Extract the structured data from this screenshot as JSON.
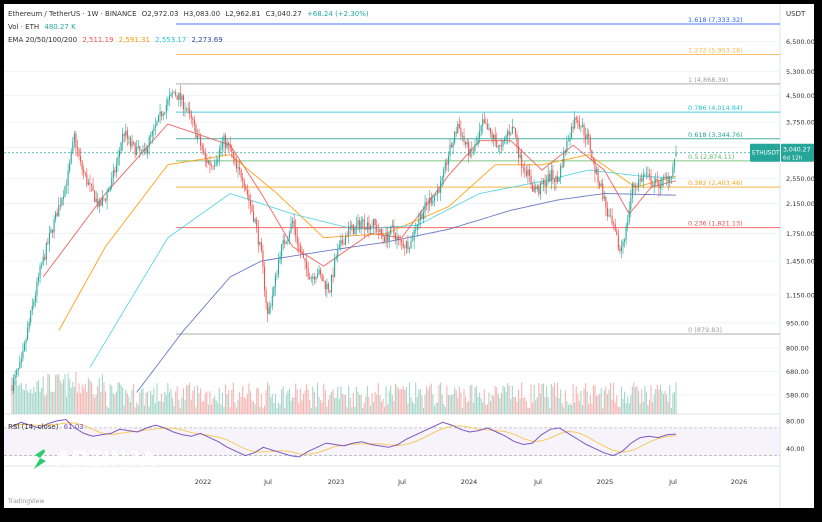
{
  "header": {
    "symbol_line": "Ethereum / TetherUS · 1W · BINANCE",
    "ohlc": {
      "o": "O2,972.03",
      "h": "H3,083.00",
      "l": "L2,962.81",
      "c": "C3,040.27",
      "chg": "+68.24 (+2.30%)"
    },
    "vol_label": "Vol · ETH",
    "vol_value": "480.27 K",
    "ema_label": "EMA 20/50/100/200",
    "ema_values": [
      "2,511.19",
      "2,591.31",
      "2,553.17",
      "2,273.69"
    ],
    "rsi_label": "RSI (14, close)",
    "rsi_value": "61.03",
    "currency": "USDT",
    "branding": "TradingView"
  },
  "watermark": {
    "brand": "ARZINJA",
    "site": "arzinja.info"
  },
  "colors": {
    "up": "#26a69a",
    "down": "#ef5350",
    "ema20": "#ef5350",
    "ema50": "#ff9800",
    "ema100": "#4dd0e1",
    "ema200": "#5c6bc0",
    "rsi": "#7e57c2",
    "rsi_ma": "#f9c74f",
    "brand": "#2ecc71"
  },
  "chart_data": {
    "type": "candlestick",
    "symbol": "ETHUSDT",
    "price_scale": "log",
    "y_ticks": [
      6500,
      5300,
      4500,
      3750,
      3150,
      2550,
      2150,
      1750,
      1450,
      1150,
      950,
      800,
      680,
      580
    ],
    "x_ticks": [
      "2022",
      "Jul",
      "2023",
      "Jul",
      "2024",
      "Jul",
      "2025",
      "Jul",
      "2026"
    ],
    "last_price": {
      "label": "ETHUSDT",
      "value": "3,040.27",
      "countdown": "6d 12h"
    },
    "fib_levels": [
      {
        "ratio": "1.618",
        "price": 7333.32,
        "label": "1.618 (7,333.32)",
        "color": "#2962ff"
      },
      {
        "ratio": "1.272",
        "price": 5953.28,
        "label": "1.272 (5,953.28)",
        "color": "#ffb74d"
      },
      {
        "ratio": "1",
        "price": 4868.39,
        "label": "1 (4,868.39)",
        "color": "#9e9e9e"
      },
      {
        "ratio": "0.786",
        "price": 4014.84,
        "label": "0.786 (4,014.84)",
        "color": "#26c6da"
      },
      {
        "ratio": "0.618",
        "price": 3344.76,
        "label": "0.618 (3,344.76)",
        "color": "#26a69a"
      },
      {
        "ratio": "0.5",
        "price": 2874.11,
        "label": "0.5 (2,874.11)",
        "color": "#66bb6a"
      },
      {
        "ratio": "0.382",
        "price": 2403.46,
        "label": "0.382 (2,403.46)",
        "color": "#f5a623"
      },
      {
        "ratio": "0.236",
        "price": 1821.13,
        "label": "0.236 (1,821.13)",
        "color": "#ef5350"
      },
      {
        "ratio": "0",
        "price": 879.83,
        "label": "0 (879.83)",
        "color": "#9e9e9e"
      }
    ],
    "close_path": [
      [
        0,
        620
      ],
      [
        6,
        720
      ],
      [
        12,
        1000
      ],
      [
        18,
        1350
      ],
      [
        24,
        1700
      ],
      [
        30,
        2100
      ],
      [
        36,
        2600
      ],
      [
        40,
        3400
      ],
      [
        44,
        2800
      ],
      [
        48,
        2500
      ],
      [
        52,
        2300
      ],
      [
        56,
        2100
      ],
      [
        60,
        2250
      ],
      [
        64,
        2500
      ],
      [
        68,
        2900
      ],
      [
        70,
        3300
      ],
      [
        72,
        3500
      ],
      [
        76,
        3200
      ],
      [
        80,
        3100
      ],
      [
        84,
        3000
      ],
      [
        88,
        3300
      ],
      [
        92,
        3600
      ],
      [
        96,
        4000
      ],
      [
        100,
        4300
      ],
      [
        104,
        4600
      ],
      [
        108,
        4400
      ],
      [
        112,
        4100
      ],
      [
        116,
        3700
      ],
      [
        120,
        3300
      ],
      [
        124,
        2900
      ],
      [
        128,
        2800
      ],
      [
        132,
        3000
      ],
      [
        136,
        3300
      ],
      [
        140,
        3100
      ],
      [
        144,
        2700
      ],
      [
        148,
        2600
      ],
      [
        152,
        2200
      ],
      [
        156,
        1900
      ],
      [
        160,
        1500
      ],
      [
        164,
        1000
      ],
      [
        168,
        1200
      ],
      [
        172,
        1550
      ],
      [
        176,
        1700
      ],
      [
        180,
        1900
      ],
      [
        184,
        1600
      ],
      [
        188,
        1400
      ],
      [
        192,
        1300
      ],
      [
        196,
        1350
      ],
      [
        200,
        1250
      ],
      [
        204,
        1200
      ],
      [
        208,
        1500
      ],
      [
        212,
        1650
      ],
      [
        216,
        1800
      ],
      [
        220,
        1800
      ],
      [
        224,
        1900
      ],
      [
        228,
        1860
      ],
      [
        232,
        1870
      ],
      [
        236,
        1750
      ],
      [
        240,
        1700
      ],
      [
        244,
        1800
      ],
      [
        248,
        1650
      ],
      [
        252,
        1620
      ],
      [
        256,
        1650
      ],
      [
        260,
        1900
      ],
      [
        264,
        2050
      ],
      [
        268,
        2200
      ],
      [
        272,
        2300
      ],
      [
        276,
        2500
      ],
      [
        280,
        3000
      ],
      [
        284,
        3400
      ],
      [
        286,
        3700
      ],
      [
        290,
        3300
      ],
      [
        294,
        3000
      ],
      [
        298,
        3200
      ],
      [
        302,
        3700
      ],
      [
        306,
        3500
      ],
      [
        310,
        3300
      ],
      [
        314,
        3100
      ],
      [
        318,
        3500
      ],
      [
        322,
        3600
      ],
      [
        326,
        2900
      ],
      [
        330,
        2700
      ],
      [
        334,
        2400
      ],
      [
        338,
        2350
      ],
      [
        342,
        2500
      ],
      [
        346,
        2600
      ],
      [
        350,
        2500
      ],
      [
        354,
        3000
      ],
      [
        358,
        3500
      ],
      [
        362,
        3900
      ],
      [
        366,
        3600
      ],
      [
        370,
        3300
      ],
      [
        374,
        2700
      ],
      [
        378,
        2400
      ],
      [
        382,
        2000
      ],
      [
        386,
        1800
      ],
      [
        390,
        1550
      ],
      [
        394,
        1800
      ],
      [
        398,
        2400
      ],
      [
        402,
        2500
      ],
      [
        406,
        2600
      ],
      [
        410,
        2500
      ],
      [
        414,
        2450
      ],
      [
        418,
        2500
      ],
      [
        422,
        2600
      ],
      [
        424,
        2750
      ],
      [
        426,
        3040.27
      ]
    ],
    "ema_lines": [
      {
        "name": "EMA 20",
        "path": [
          [
            20,
            1300
          ],
          [
            60,
            2300
          ],
          [
            100,
            3700
          ],
          [
            140,
            3200
          ],
          [
            160,
            2300
          ],
          [
            180,
            1600
          ],
          [
            200,
            1400
          ],
          [
            230,
            1750
          ],
          [
            250,
            1700
          ],
          [
            280,
            2600
          ],
          [
            300,
            3300
          ],
          [
            320,
            3300
          ],
          [
            340,
            2700
          ],
          [
            360,
            3200
          ],
          [
            380,
            2700
          ],
          [
            396,
            2000
          ],
          [
            410,
            2400
          ],
          [
            426,
            2511.19
          ]
        ]
      },
      {
        "name": "EMA 50",
        "path": [
          [
            30,
            900
          ],
          [
            60,
            1600
          ],
          [
            100,
            2800
          ],
          [
            140,
            3000
          ],
          [
            170,
            2300
          ],
          [
            200,
            1700
          ],
          [
            240,
            1750
          ],
          [
            280,
            2100
          ],
          [
            310,
            2800
          ],
          [
            340,
            2800
          ],
          [
            370,
            3000
          ],
          [
            400,
            2400
          ],
          [
            426,
            2591.31
          ]
        ]
      },
      {
        "name": "EMA 100",
        "path": [
          [
            50,
            700
          ],
          [
            100,
            1700
          ],
          [
            140,
            2300
          ],
          [
            180,
            2000
          ],
          [
            220,
            1800
          ],
          [
            260,
            1850
          ],
          [
            300,
            2300
          ],
          [
            340,
            2500
          ],
          [
            370,
            2700
          ],
          [
            400,
            2600
          ],
          [
            426,
            2553.17
          ]
        ]
      },
      {
        "name": "EMA 200",
        "path": [
          [
            80,
            590
          ],
          [
            110,
            900
          ],
          [
            140,
            1300
          ],
          [
            160,
            1450
          ],
          [
            200,
            1550
          ],
          [
            240,
            1650
          ],
          [
            280,
            1800
          ],
          [
            320,
            2050
          ],
          [
            350,
            2200
          ],
          [
            380,
            2300
          ],
          [
            426,
            2273.69
          ]
        ]
      }
    ],
    "rsi": {
      "ticks": [
        80,
        40
      ],
      "bands": [
        70,
        30
      ],
      "values": [
        72,
        78,
        74,
        70,
        76,
        80,
        82,
        70,
        62,
        58,
        60,
        62,
        68,
        66,
        64,
        70,
        74,
        70,
        64,
        60,
        58,
        62,
        56,
        50,
        42,
        36,
        30,
        34,
        42,
        38,
        34,
        30,
        28,
        36,
        42,
        48,
        46,
        44,
        48,
        50,
        46,
        44,
        42,
        46,
        54,
        60,
        66,
        72,
        78,
        74,
        68,
        64,
        66,
        70,
        64,
        58,
        50,
        46,
        48,
        60,
        68,
        70,
        62,
        54,
        46,
        40,
        34,
        30,
        36,
        48,
        56,
        58,
        56,
        60,
        61.03
      ]
    },
    "volume": "relative bars, not numerically labelled"
  }
}
